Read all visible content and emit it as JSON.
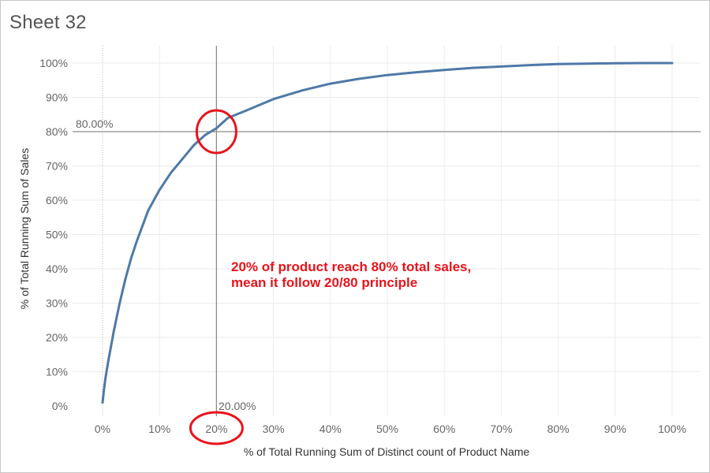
{
  "sheet": {
    "title": "Sheet 32"
  },
  "colors": {
    "line": "#4e79a7",
    "reference": "#8c8c8c",
    "annotation": "#e8141c",
    "grid": "#ebebeb"
  },
  "chart_data": {
    "type": "line",
    "title": "",
    "xlabel": "% of Total Running Sum of Distinct count of Product Name",
    "ylabel": "% of Total Running Sum of Sales",
    "xlim": [
      0,
      100
    ],
    "ylim": [
      0,
      100
    ],
    "x_ticks": [
      "0%",
      "10%",
      "20%",
      "30%",
      "40%",
      "50%",
      "60%",
      "70%",
      "80%",
      "90%",
      "100%"
    ],
    "y_ticks": [
      "0%",
      "10%",
      "20%",
      "30%",
      "40%",
      "50%",
      "60%",
      "70%",
      "80%",
      "90%",
      "100%"
    ],
    "grid": true,
    "series": [
      {
        "x": [
          0,
          0.2,
          0.5,
          1,
          2,
          3,
          4,
          5,
          6,
          8,
          10,
          12,
          14,
          16,
          18,
          20,
          22,
          25,
          30,
          35,
          40,
          45,
          50,
          55,
          60,
          65,
          70,
          75,
          80,
          85,
          90,
          95,
          100
        ],
        "y": [
          1,
          4,
          8,
          13,
          22,
          30,
          37,
          43,
          48,
          57,
          63,
          68,
          72,
          76,
          79,
          81,
          84,
          86,
          89.5,
          92,
          94,
          95.4,
          96.5,
          97.3,
          98,
          98.6,
          99,
          99.4,
          99.7,
          99.85,
          99.95,
          100,
          100
        ]
      }
    ],
    "reference_lines": [
      {
        "axis": "y",
        "value": 80,
        "label": "80.00%"
      },
      {
        "axis": "x",
        "value": 20,
        "label": "20.00%"
      }
    ],
    "annotation": {
      "lines": [
        "20% of product reach 80% total sales,",
        "mean it follow 20/80 principle"
      ]
    }
  }
}
